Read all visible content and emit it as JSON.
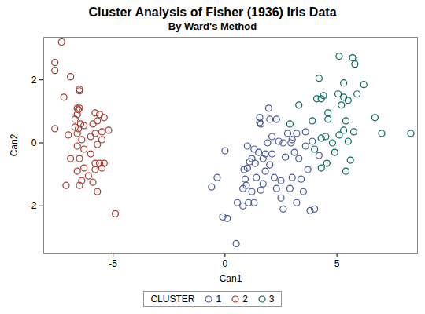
{
  "chart_data": {
    "type": "scatter",
    "title": "Cluster Analysis of Fisher (1936) Iris Data",
    "subtitle": "By Ward's Method",
    "x_label": "Can1",
    "y_label": "Can2",
    "legend_title": "CLUSTER",
    "legend": "bottom",
    "marker": "circle",
    "grid": false,
    "xlim": [
      -8.1,
      8.6
    ],
    "ylim": [
      -3.5,
      3.35
    ],
    "xticks": [
      -5,
      0,
      5
    ],
    "yticks": [
      -2,
      0,
      2
    ],
    "series": [
      {
        "name": "1",
        "color": "#445694",
        "x": [
          -0.6,
          -0.35,
          -0.1,
          0.1,
          0,
          0.5,
          0.55,
          0.8,
          0.95,
          0.85,
          1.0,
          1.1,
          0.9,
          0.8,
          1.05,
          1.3,
          1.4,
          1.35,
          1.3,
          1.2,
          1.6,
          1.7,
          1.8,
          1.7,
          2.0,
          2.1,
          1.8,
          1.9,
          1.55,
          1.55,
          1.6,
          1.95,
          2.0,
          2.3,
          2.1,
          2.4,
          2.6,
          2.7,
          2.5,
          2.3,
          2.5,
          2.6,
          2.9,
          3.2,
          3.3,
          3.1,
          3.0,
          2.8,
          3.2,
          3.4,
          3.0,
          3.6,
          3.7,
          3.8,
          4.0,
          3.5,
          1.5,
          2.2,
          1.2,
          1.0,
          2.95,
          3.6,
          3.9,
          4.2
        ],
        "values": [
          -1.4,
          -1.1,
          -2.35,
          -2.4,
          -0.25,
          -3.2,
          -1.9,
          -1.45,
          -1.35,
          -0.85,
          -0.8,
          -0.6,
          -1.15,
          -2.0,
          -1.9,
          -1.9,
          -1.1,
          -0.65,
          -0.2,
          -0.5,
          -1.5,
          -0.5,
          -0.9,
          -1.3,
          -0.7,
          -0.35,
          -0.35,
          0,
          0.8,
          0.65,
          0.6,
          1.1,
          0.75,
          0.75,
          0.2,
          0.05,
          0,
          -0.45,
          -1.2,
          -1.45,
          -1.75,
          -2.1,
          -1.45,
          -1.9,
          -0.5,
          -0.3,
          0.1,
          0.3,
          0.3,
          -1.15,
          -1.1,
          -0.1,
          -0.85,
          -2.15,
          -2.1,
          -1.55,
          -0.3,
          -1.1,
          -1.55,
          -0.1,
          0.0,
          0.35,
          0.05,
          -0.4
        ]
      },
      {
        "name": "2",
        "color": "#A23A2E",
        "x": [
          -7.3,
          -7.6,
          -7.6,
          -6.9,
          -7.2,
          -6.5,
          -6.5,
          -6.6,
          -6.55,
          -6.5,
          -6.6,
          -6.7,
          -6.45,
          -6.7,
          -6.55,
          -6.3,
          -6.6,
          -7.6,
          -7.0,
          -6.4,
          -6.6,
          -6.3,
          -6.5,
          -6.9,
          -6.3,
          -6.6,
          -6.4,
          -6.5,
          -7.1,
          -6.1,
          -5.9,
          -5.7,
          -5.8,
          -5.5,
          -5.6,
          -5.8,
          -5.4,
          -6.0,
          -5.7,
          -5.5,
          -5.8,
          -5.5,
          -5.2,
          -5.8,
          -5.6,
          -5.9,
          -5.7,
          -6.0,
          -5.4,
          -4.9
        ],
        "values": [
          3.2,
          2.55,
          2.3,
          2.1,
          1.45,
          1.7,
          1.65,
          1.1,
          1.05,
          1.1,
          0.9,
          0.75,
          0.6,
          0.5,
          0.45,
          0.55,
          0.3,
          0.45,
          0.25,
          0.1,
          -0.1,
          -0.2,
          -0.5,
          -0.5,
          -0.8,
          -0.9,
          -1.2,
          -1.35,
          -1.35,
          -1.05,
          -1.25,
          -1.55,
          -0.85,
          -0.8,
          -0.65,
          -0.65,
          -0.65,
          -0.35,
          -0.05,
          0.1,
          0.3,
          0.35,
          0.4,
          0.95,
          0.9,
          0.6,
          0.7,
          0.2,
          0.8,
          -2.25
        ]
      },
      {
        "name": "3",
        "color": "#01665E",
        "x": [
          2.9,
          3.3,
          3.9,
          4.1,
          4.3,
          4.2,
          4.4,
          4.6,
          4.6,
          4.3,
          4.5,
          4.8,
          4.9,
          5.1,
          4.3,
          4.55,
          4.0,
          5.05,
          5.1,
          5.2,
          5.3,
          5.3,
          5.5,
          5.4,
          5.3,
          5.5,
          5.6,
          5.4,
          5.7,
          5.8,
          5.9,
          5.75,
          6.2,
          6.7,
          7.0,
          8.3
        ],
        "values": [
          0.6,
          1.2,
          0.7,
          1.4,
          1.4,
          2.05,
          1.5,
          0.95,
          0.75,
          0.15,
          0.2,
          0,
          -0.3,
          0.25,
          -0.8,
          -0.65,
          -0.2,
          1.55,
          2.75,
          1.2,
          1.45,
          1.9,
          1.35,
          0.7,
          0.4,
          0.05,
          -0.55,
          -0.9,
          2.7,
          2.5,
          1.55,
          0.35,
          1.85,
          0.8,
          0.3,
          0.3
        ]
      }
    ]
  }
}
